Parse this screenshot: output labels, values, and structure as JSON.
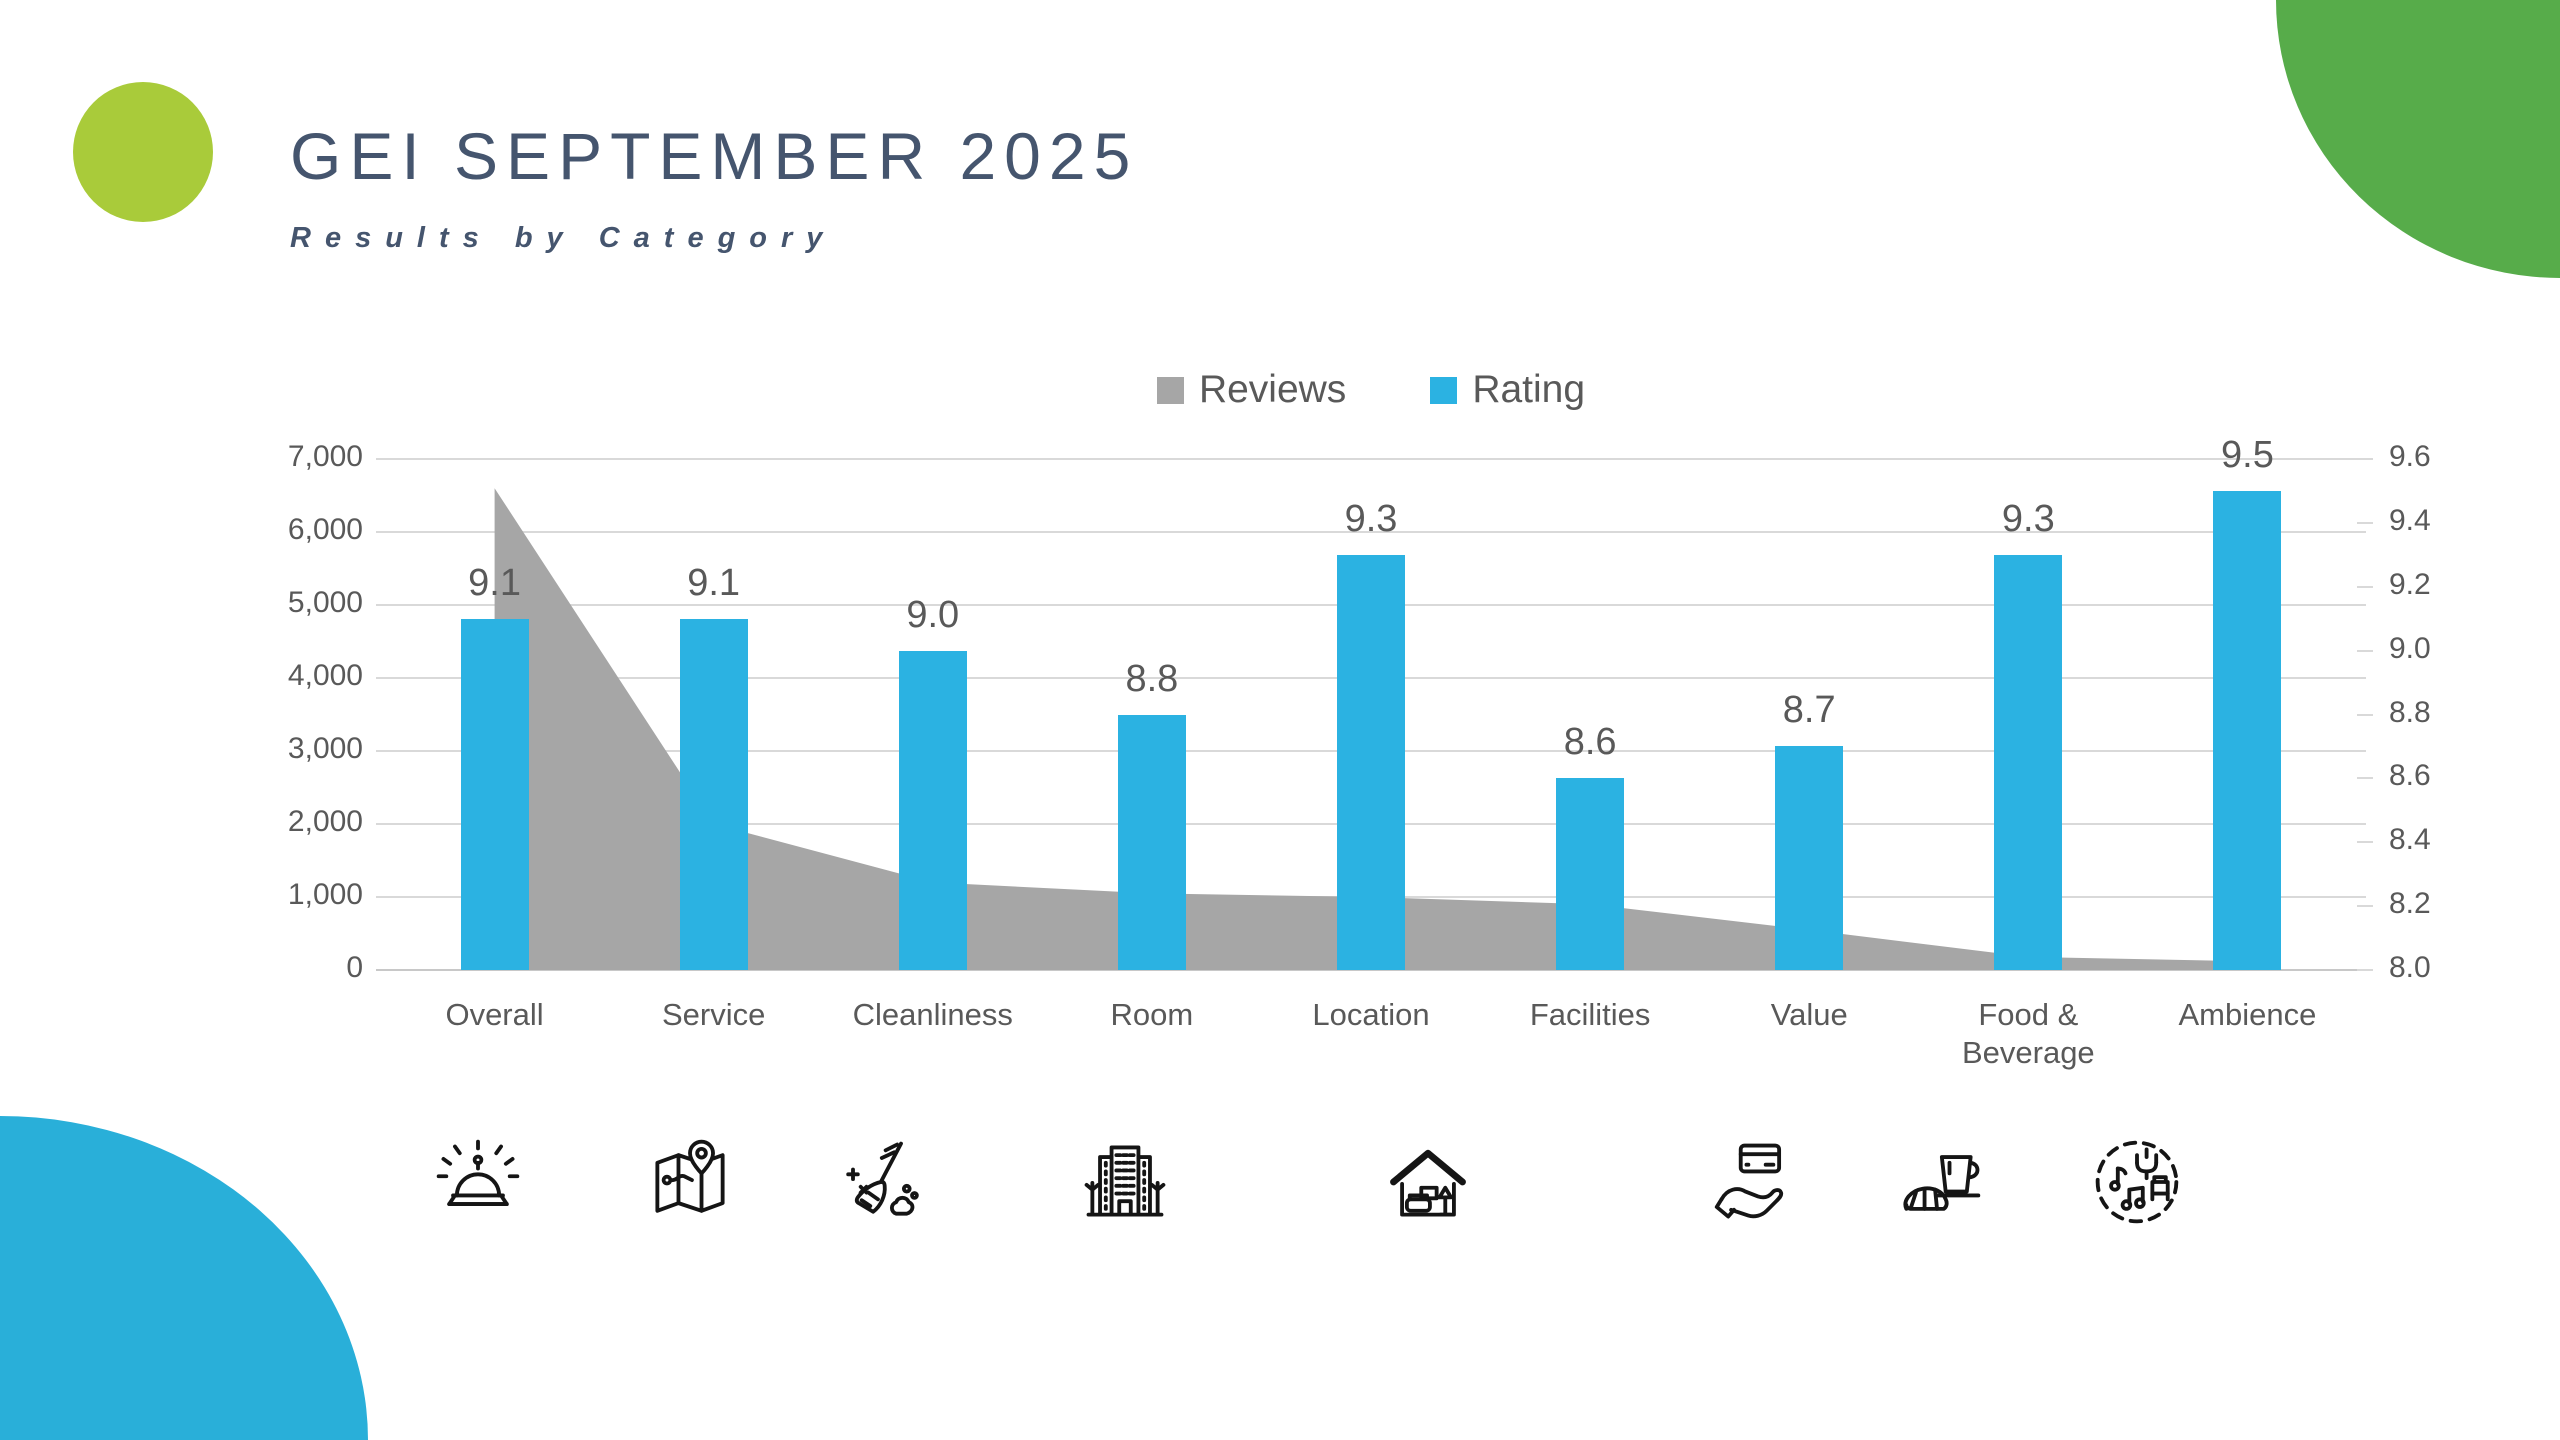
{
  "header": {
    "title": "GEI SEPTEMBER 2025",
    "subtitle": "Results by Category",
    "title_color": "#45556e"
  },
  "decor": {
    "lime_circle_color": "#a9cb3a",
    "green_corner_color": "#57ac4a",
    "blue_corner_color": "#29afd9"
  },
  "legend": [
    {
      "label": "Reviews",
      "color": "#a6a6a6"
    },
    {
      "label": "Rating",
      "color": "#2bb2e2"
    }
  ],
  "chart_data": {
    "type": "combo",
    "categories": [
      "Overall",
      "Service",
      "Cleanliness",
      "Room",
      "Location",
      "Facilities",
      "Value",
      "Food & Beverage",
      "Ambience"
    ],
    "series": [
      {
        "name": "Reviews",
        "type": "area",
        "axis": "left",
        "color": "#a6a6a6",
        "values": [
          6600,
          2000,
          1200,
          1050,
          1000,
          900,
          550,
          180,
          120
        ]
      },
      {
        "name": "Rating",
        "type": "bar",
        "axis": "right",
        "color": "#2bb2e2",
        "values": [
          9.1,
          9.1,
          9.0,
          8.8,
          9.3,
          8.6,
          8.7,
          9.3,
          9.5
        ]
      }
    ],
    "data_labels": [
      "9.1",
      "9.1",
      "9.0",
      "8.8",
      "9.3",
      "8.6",
      "8.7",
      "9.3",
      "9.5"
    ],
    "left_axis": {
      "min": 0,
      "max": 7000,
      "step": 1000,
      "tick_labels": [
        "0",
        "1,000",
        "2,000",
        "3,000",
        "4,000",
        "5,000",
        "6,000",
        "7,000"
      ]
    },
    "right_axis": {
      "min": 8.0,
      "max": 9.6,
      "step": 0.2,
      "tick_labels": [
        "8.0",
        "8.2",
        "8.4",
        "8.6",
        "8.8",
        "9.0",
        "9.2",
        "9.4",
        "9.6"
      ]
    },
    "gridlines": true,
    "legend_position": "top-center"
  },
  "icons": [
    {
      "name": "service-bell-icon"
    },
    {
      "name": "map-location-icon"
    },
    {
      "name": "broom-cleaning-icon"
    },
    {
      "name": "hotel-building-icon"
    },
    {
      "name": "house-interior-icon"
    },
    {
      "name": "card-payment-icon"
    },
    {
      "name": "coffee-croissant-icon"
    },
    {
      "name": "ambience-music-icon"
    }
  ]
}
